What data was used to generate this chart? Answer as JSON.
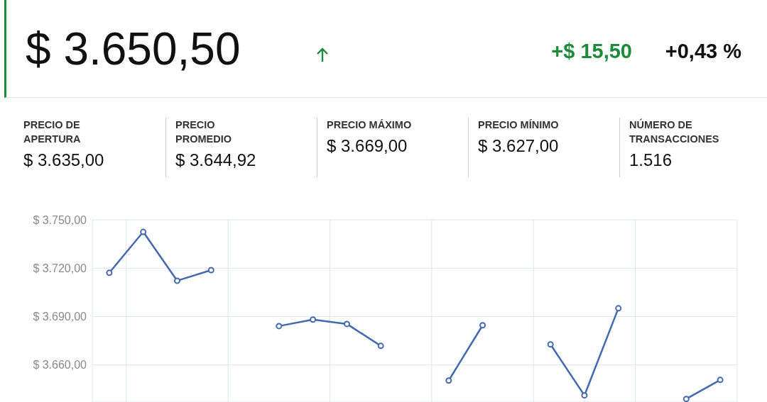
{
  "chart_data": {
    "type": "line",
    "title": "$ 3.650,50",
    "annotations": [
      "+$ 15,50",
      "+0,43 %",
      "PRECIO DE APERTURA",
      "$ 3.635,00",
      "PRECIO PROMEDIO",
      "$ 3.644,92",
      "PRECIO MÁXIMO",
      "$ 3.669,00",
      "PRECIO MÍNIMO",
      "$ 3.627,00",
      "NÚMERO DE TRANSACCIONES",
      "1.516"
    ],
    "categories": [
      null,
      null,
      null,
      null,
      null,
      null,
      null,
      null,
      null,
      null,
      null,
      null,
      null,
      null,
      null,
      null,
      null,
      null,
      null
    ],
    "series": [
      {
        "color": "#4469b0",
        "values": [
          3717.1,
          3742.5,
          3712.2,
          3718.8,
          null,
          3684.1,
          3688.1,
          3685.4,
          3671.8,
          null,
          3650.3,
          3684.6,
          null,
          3672.7,
          3641.1,
          3695.1,
          null,
          3638.9,
          3650.7
        ]
      }
    ],
    "ylim": [
      3637,
      3750
    ],
    "yticks": [
      {
        "value": 3660,
        "label": "$ 3.660,00"
      },
      {
        "value": 3690,
        "label": "$ 3.690,00"
      },
      {
        "value": 3720,
        "label": "$ 3.720,00"
      },
      {
        "value": 3750,
        "label": "$ 3.750,00"
      }
    ],
    "grid": true,
    "marker": "circle",
    "line_style": "solid",
    "legend": false,
    "tick_labels": "y"
  }
}
